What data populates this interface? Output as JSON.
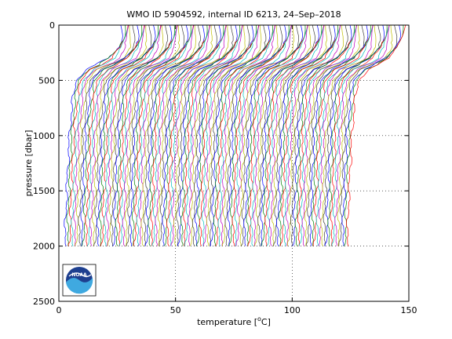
{
  "chart_data": {
    "type": "line",
    "title": "WMO ID 5904592, internal ID 6213, 24–Sep–2018",
    "xlabel_prefix": "temperature [",
    "xlabel_unit_sup": "o",
    "xlabel_suffix": "C]",
    "ylabel": "pressure [dbar]",
    "xlim": [
      0,
      150
    ],
    "ylim": [
      2500,
      0
    ],
    "y_reversed": true,
    "x_ticks": [
      0,
      50,
      100,
      150
    ],
    "x_tick_labels": [
      "0",
      "50",
      "100",
      "150"
    ],
    "y_ticks": [
      0,
      500,
      1000,
      1500,
      2000,
      2500
    ],
    "y_tick_labels": [
      "0",
      "500",
      "1000",
      "1500",
      "2000",
      "2500"
    ],
    "grid": "dotted",
    "profile_count": 122,
    "profile_offset_step": 1,
    "base_profile": {
      "pressure": [
        0,
        100,
        200,
        300,
        350,
        400,
        500,
        700,
        900,
        1100,
        1300,
        1500,
        1700,
        2000
      ],
      "temperature": [
        26.5,
        26.3,
        25.2,
        21.5,
        17.0,
        11.5,
        7.5,
        5.8,
        4.9,
        4.3,
        3.8,
        3.4,
        3.0,
        2.6
      ]
    },
    "line_colors": [
      "#0000ff",
      "#008000",
      "#ff0000",
      "#00bfbf",
      "#bf00bf",
      "#bfbf00",
      "#404040"
    ],
    "logo": "noaa-logo"
  },
  "logo_text": "NOAA"
}
